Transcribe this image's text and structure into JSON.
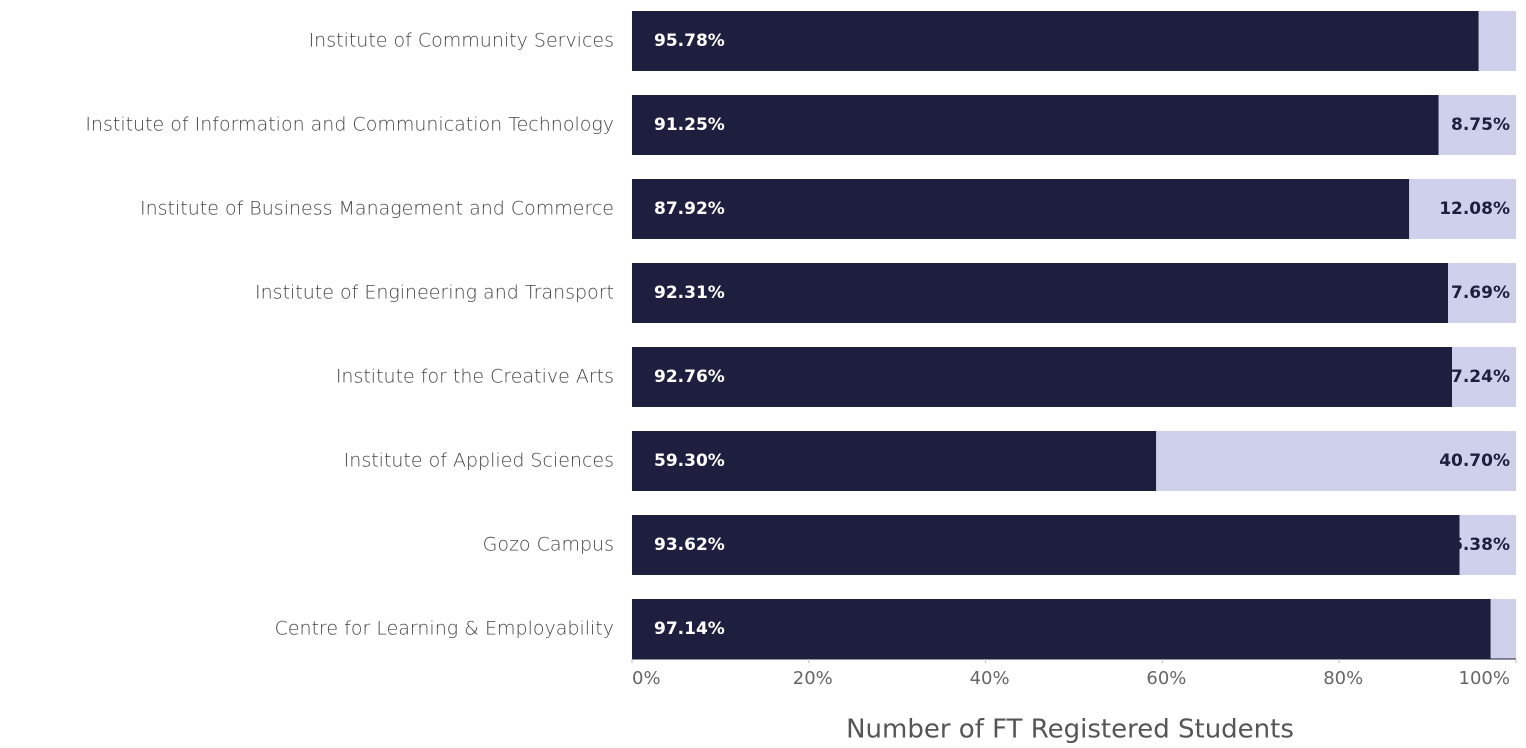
{
  "chart_data": {
    "type": "stacked-bar-horizontal",
    "x_axis_label": "Number of FT Registered Students",
    "categories": [
      "Institute of Community Services",
      "Institute of Information and Communication Technology",
      "Institute of Business Management and Commerce",
      "Institute of Engineering and Transport",
      "Institute for the Creative Arts",
      "Institute of Applied Sciences",
      "Gozo Campus",
      "Centre for Learning & Employability"
    ],
    "series": [
      {
        "color": "#1e1f3f",
        "values": [
          95.78,
          91.25,
          87.92,
          92.31,
          92.76,
          59.3,
          93.62,
          97.14
        ],
        "value_labels": [
          "95.78%",
          "91.25%",
          "87.92%",
          "92.31%",
          "92.76%",
          "59.30%",
          "93.62%",
          "97.14%"
        ]
      },
      {
        "color": "#cfd0ec",
        "values": [
          4.22,
          8.75,
          12.08,
          7.69,
          7.24,
          40.7,
          6.38,
          2.86
        ],
        "value_labels": [
          null,
          "8.75%",
          "12.08%",
          "7.69%",
          "7.24%",
          "40.70%",
          "6.38%",
          null
        ]
      }
    ],
    "xlim": [
      0,
      100
    ],
    "xticks": [
      {
        "value": 0,
        "label": "0%"
      },
      {
        "value": 20,
        "label": "20%"
      },
      {
        "value": 40,
        "label": "40%"
      },
      {
        "value": 60,
        "label": "60%"
      },
      {
        "value": 80,
        "label": "80%"
      },
      {
        "value": 100,
        "label": "100%"
      }
    ],
    "grid": false
  }
}
